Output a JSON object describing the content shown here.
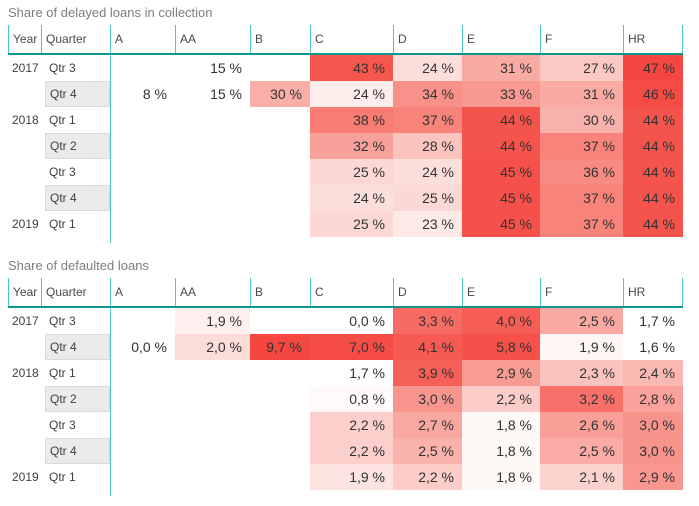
{
  "page": {
    "background": "#ffffff"
  },
  "style_colors": {
    "accent_separator": "#4cc8c2",
    "header_underline": "#0f9691",
    "title_text": "#7e7e7e",
    "header_text": "#494949",
    "value_text": "#323232",
    "row_label_text": "#3f3f3f",
    "shaded_quarter_bg": "#ebebeb",
    "shaded_quarter_border": "#dadada"
  },
  "chart_data": [
    {
      "type": "heatmap",
      "title": "Share of delayed loans in collection",
      "row_fields": [
        "Year",
        "Quarter"
      ],
      "value_columns": [
        "A",
        "AA",
        "B",
        "C",
        "D",
        "E",
        "F",
        "HR"
      ],
      "unit": "%",
      "number_format": "0 %",
      "color_scale": {
        "min_color": "#ffffff",
        "max_color": "#f4453e"
      },
      "rows": [
        {
          "year": "2017",
          "quarter": "Qtr 3",
          "shaded": false,
          "display": [
            "",
            "15 %",
            "",
            "43 %",
            "24 %",
            "31 %",
            "27 %",
            "47 %"
          ],
          "values": [
            null,
            15,
            null,
            43,
            24,
            31,
            27,
            47
          ],
          "cell_colors": [
            "",
            "",
            "",
            "#f5574f",
            "#fcdfdb",
            "#f9aaa3",
            "#fbc9c4",
            "#f44741"
          ]
        },
        {
          "year": "",
          "quarter": "Qtr 4",
          "shaded": true,
          "display": [
            "8 %",
            "15 %",
            "30 %",
            "24 %",
            "34 %",
            "33 %",
            "31 %",
            "46 %"
          ],
          "values": [
            8,
            15,
            30,
            24,
            34,
            33,
            31,
            46
          ],
          "cell_colors": [
            "",
            "",
            "#f9aea8",
            "#fdedeb",
            "#f7918a",
            "#f89992",
            "#f9aaa3",
            "#f44c45"
          ]
        },
        {
          "year": "2018",
          "quarter": "Qtr 1",
          "shaded": false,
          "display": [
            "",
            "",
            "",
            "38 %",
            "37 %",
            "44 %",
            "30 %",
            "44 %"
          ],
          "values": [
            null,
            null,
            null,
            38,
            37,
            44,
            30,
            44
          ],
          "cell_colors": [
            "",
            "",
            "",
            "#f67c74",
            "#f7837b",
            "#f5544d",
            "#f9b1ab",
            "#f5544d"
          ]
        },
        {
          "year": "",
          "quarter": "Qtr 2",
          "shaded": true,
          "display": [
            "",
            "",
            "",
            "32 %",
            "28 %",
            "44 %",
            "37 %",
            "44 %"
          ],
          "values": [
            null,
            null,
            null,
            32,
            28,
            44,
            37,
            44
          ],
          "cell_colors": [
            "",
            "",
            "",
            "#f8a19a",
            "#fbc4bf",
            "#f5544d",
            "#f7837b",
            "#f5544d"
          ]
        },
        {
          "year": "",
          "quarter": "Qtr 3",
          "shaded": false,
          "display": [
            "",
            "",
            "",
            "25 %",
            "24 %",
            "45 %",
            "36 %",
            "44 %"
          ],
          "values": [
            null,
            null,
            null,
            25,
            24,
            45,
            36,
            44
          ],
          "cell_colors": [
            "",
            "",
            "",
            "#fcd8d4",
            "#fcdfdb",
            "#f55049",
            "#f78a82",
            "#f5544d"
          ]
        },
        {
          "year": "",
          "quarter": "Qtr 4",
          "shaded": true,
          "display": [
            "",
            "",
            "",
            "24 %",
            "25 %",
            "45 %",
            "37 %",
            "44 %"
          ],
          "values": [
            null,
            null,
            null,
            24,
            25,
            45,
            37,
            44
          ],
          "cell_colors": [
            "",
            "",
            "",
            "#fcdfdb",
            "#fcd8d4",
            "#f55049",
            "#f7837b",
            "#f5544d"
          ]
        },
        {
          "year": "2019",
          "quarter": "Qtr 1",
          "shaded": false,
          "display": [
            "",
            "",
            "",
            "25 %",
            "23 %",
            "45 %",
            "37 %",
            "44 %"
          ],
          "values": [
            null,
            null,
            null,
            25,
            23,
            45,
            37,
            44
          ],
          "cell_colors": [
            "",
            "",
            "",
            "#fcd8d4",
            "#fde9e6",
            "#f55049",
            "#f7837b",
            "#f5544d"
          ]
        }
      ]
    },
    {
      "type": "heatmap",
      "title": "Share of defaulted loans",
      "row_fields": [
        "Year",
        "Quarter"
      ],
      "value_columns": [
        "A",
        "AA",
        "B",
        "C",
        "D",
        "E",
        "F",
        "HR"
      ],
      "unit": "%",
      "number_format": "0,0 %",
      "color_scale": {
        "min_color": "#ffffff",
        "max_color": "#f4473f"
      },
      "rows": [
        {
          "year": "2017",
          "quarter": "Qtr 3",
          "shaded": false,
          "display": [
            "",
            "1,9 %",
            "",
            "0,0 %",
            "3,3 %",
            "4,0 %",
            "2,5 %",
            "1,7 %"
          ],
          "values": [
            null,
            1.9,
            null,
            0.0,
            3.3,
            4.0,
            2.5,
            1.7
          ],
          "cell_colors": [
            "",
            "#fdefee",
            "",
            "",
            "#f76b63",
            "#f65d55",
            "#f9a8a2",
            ""
          ]
        },
        {
          "year": "",
          "quarter": "Qtr 4",
          "shaded": true,
          "display": [
            "0,0 %",
            "2,0 %",
            "9,7 %",
            "7,0 %",
            "4,1 %",
            "5,8 %",
            "1,9 %",
            "1,6 %"
          ],
          "values": [
            0.0,
            2.0,
            9.7,
            7.0,
            4.1,
            5.8,
            1.9,
            1.6
          ],
          "cell_colors": [
            "",
            "#fcdcd9",
            "#f4473f",
            "#f54d45",
            "#f65b53",
            "#f55049",
            "#fef6f5",
            ""
          ]
        },
        {
          "year": "2018",
          "quarter": "Qtr 1",
          "shaded": false,
          "display": [
            "",
            "",
            "",
            "1,7 %",
            "3,9 %",
            "2,9 %",
            "2,3 %",
            "2,4 %"
          ],
          "values": [
            null,
            null,
            null,
            1.7,
            3.9,
            2.9,
            2.3,
            2.4
          ],
          "cell_colors": [
            "",
            "",
            "",
            "",
            "#f66059",
            "#f89b93",
            "#fbc3be",
            "#fab8b3"
          ]
        },
        {
          "year": "",
          "quarter": "Qtr 2",
          "shaded": true,
          "display": [
            "",
            "",
            "",
            "0,8 %",
            "3,0 %",
            "2,2 %",
            "3,2 %",
            "2,8 %"
          ],
          "values": [
            null,
            null,
            null,
            0.8,
            3.0,
            2.2,
            3.2,
            2.8
          ],
          "cell_colors": [
            "",
            "",
            "",
            "#fefafa",
            "#f8968e",
            "#fbccc8",
            "#f7706a",
            "#f9a29b"
          ]
        },
        {
          "year": "",
          "quarter": "Qtr 3",
          "shaded": false,
          "display": [
            "",
            "",
            "",
            "2,2 %",
            "2,7 %",
            "1,8 %",
            "2,6 %",
            "3,0 %"
          ],
          "values": [
            null,
            null,
            null,
            2.2,
            2.7,
            1.8,
            2.6,
            3.0
          ],
          "cell_colors": [
            "",
            "",
            "",
            "#fbcfcb",
            "#f9a8a1",
            "#fef8f7",
            "#f99f98",
            "#f8938c"
          ]
        },
        {
          "year": "",
          "quarter": "Qtr 4",
          "shaded": true,
          "display": [
            "",
            "",
            "",
            "2,2 %",
            "2,5 %",
            "1,8 %",
            "2,5 %",
            "3,0 %"
          ],
          "values": [
            null,
            null,
            null,
            2.2,
            2.5,
            1.8,
            2.5,
            3.0
          ],
          "cell_colors": [
            "",
            "",
            "",
            "#fbcfcb",
            "#fab2ad",
            "#fef8f7",
            "#faaba5",
            "#f8938c"
          ]
        },
        {
          "year": "2019",
          "quarter": "Qtr 1",
          "shaded": false,
          "display": [
            "",
            "",
            "",
            "1,9 %",
            "2,2 %",
            "1,8 %",
            "2,1 %",
            "2,9 %"
          ],
          "values": [
            null,
            null,
            null,
            1.9,
            2.2,
            1.8,
            2.1,
            2.9
          ],
          "cell_colors": [
            "",
            "",
            "",
            "#fce4e1",
            "#fbccc8",
            "#fef8f7",
            "#fbd2ce",
            "#f8978f"
          ]
        }
      ]
    }
  ]
}
